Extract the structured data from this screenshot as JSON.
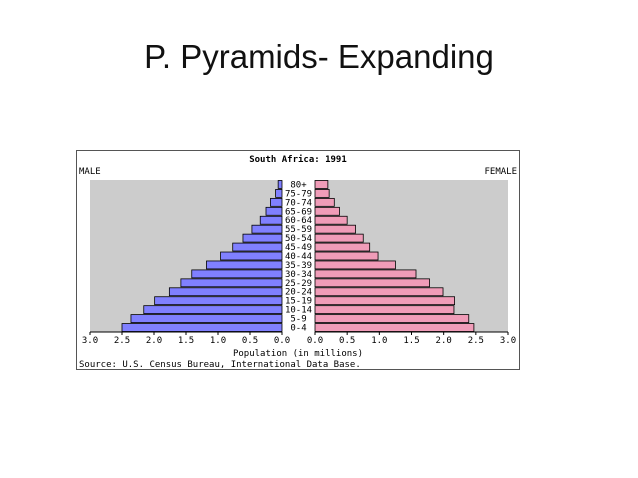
{
  "slide": {
    "title": "P. Pyramids- Expanding"
  },
  "chart_data": {
    "type": "bar",
    "orientation": "horizontal-butterfly",
    "title": "South Africa: 1991",
    "left_label": "MALE",
    "right_label": "FEMALE",
    "xlabel": "Population (in millions)",
    "source": "Source: U.S. Census Bureau, International Data Base.",
    "xlim": [
      0,
      3.0
    ],
    "left_ticks": [
      "3.0",
      "2.5",
      "2.0",
      "1.5",
      "1.0",
      "0.5",
      "0.0"
    ],
    "right_ticks": [
      "0.0",
      "0.5",
      "1.0",
      "1.5",
      "2.0",
      "2.5",
      "3.0"
    ],
    "tick_values": [
      3.0,
      2.5,
      2.0,
      1.5,
      1.0,
      0.5,
      0.0
    ],
    "categories": [
      "80+",
      "75-79",
      "70-74",
      "65-69",
      "60-64",
      "55-59",
      "50-54",
      "45-49",
      "40-44",
      "35-39",
      "30-34",
      "25-29",
      "20-24",
      "15-19",
      "10-14",
      "5-9",
      "0-4"
    ],
    "series": [
      {
        "name": "MALE",
        "color": "#8080ff",
        "values": [
          0.06,
          0.1,
          0.18,
          0.25,
          0.34,
          0.47,
          0.61,
          0.77,
          0.96,
          1.18,
          1.41,
          1.58,
          1.76,
          1.99,
          2.16,
          2.36,
          2.5
        ]
      },
      {
        "name": "FEMALE",
        "color": "#f09cb8",
        "values": [
          0.2,
          0.22,
          0.3,
          0.38,
          0.5,
          0.63,
          0.75,
          0.85,
          0.98,
          1.25,
          1.57,
          1.78,
          1.99,
          2.17,
          2.16,
          2.39,
          2.47
        ]
      }
    ],
    "background": "#cccccc"
  }
}
